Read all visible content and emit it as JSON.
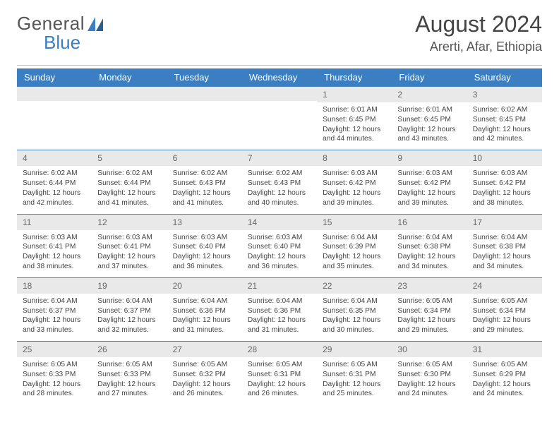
{
  "brand": {
    "word1": "General",
    "word2": "Blue"
  },
  "title": "August 2024",
  "location": "Arerti, Afar, Ethiopia",
  "colors": {
    "header_bg": "#3b7ec2",
    "daynum_bg": "#e9e9e9",
    "week_border": "#4a82ba",
    "text": "#444444"
  },
  "weekdays": [
    "Sunday",
    "Monday",
    "Tuesday",
    "Wednesday",
    "Thursday",
    "Friday",
    "Saturday"
  ],
  "weeks": [
    [
      {
        "empty": true
      },
      {
        "empty": true
      },
      {
        "empty": true
      },
      {
        "empty": true
      },
      {
        "num": "1",
        "sunrise": "Sunrise: 6:01 AM",
        "sunset": "Sunset: 6:45 PM",
        "daylight": "Daylight: 12 hours and 44 minutes."
      },
      {
        "num": "2",
        "sunrise": "Sunrise: 6:01 AM",
        "sunset": "Sunset: 6:45 PM",
        "daylight": "Daylight: 12 hours and 43 minutes."
      },
      {
        "num": "3",
        "sunrise": "Sunrise: 6:02 AM",
        "sunset": "Sunset: 6:45 PM",
        "daylight": "Daylight: 12 hours and 42 minutes."
      }
    ],
    [
      {
        "num": "4",
        "sunrise": "Sunrise: 6:02 AM",
        "sunset": "Sunset: 6:44 PM",
        "daylight": "Daylight: 12 hours and 42 minutes."
      },
      {
        "num": "5",
        "sunrise": "Sunrise: 6:02 AM",
        "sunset": "Sunset: 6:44 PM",
        "daylight": "Daylight: 12 hours and 41 minutes."
      },
      {
        "num": "6",
        "sunrise": "Sunrise: 6:02 AM",
        "sunset": "Sunset: 6:43 PM",
        "daylight": "Daylight: 12 hours and 41 minutes."
      },
      {
        "num": "7",
        "sunrise": "Sunrise: 6:02 AM",
        "sunset": "Sunset: 6:43 PM",
        "daylight": "Daylight: 12 hours and 40 minutes."
      },
      {
        "num": "8",
        "sunrise": "Sunrise: 6:03 AM",
        "sunset": "Sunset: 6:42 PM",
        "daylight": "Daylight: 12 hours and 39 minutes."
      },
      {
        "num": "9",
        "sunrise": "Sunrise: 6:03 AM",
        "sunset": "Sunset: 6:42 PM",
        "daylight": "Daylight: 12 hours and 39 minutes."
      },
      {
        "num": "10",
        "sunrise": "Sunrise: 6:03 AM",
        "sunset": "Sunset: 6:42 PM",
        "daylight": "Daylight: 12 hours and 38 minutes."
      }
    ],
    [
      {
        "num": "11",
        "sunrise": "Sunrise: 6:03 AM",
        "sunset": "Sunset: 6:41 PM",
        "daylight": "Daylight: 12 hours and 38 minutes."
      },
      {
        "num": "12",
        "sunrise": "Sunrise: 6:03 AM",
        "sunset": "Sunset: 6:41 PM",
        "daylight": "Daylight: 12 hours and 37 minutes."
      },
      {
        "num": "13",
        "sunrise": "Sunrise: 6:03 AM",
        "sunset": "Sunset: 6:40 PM",
        "daylight": "Daylight: 12 hours and 36 minutes."
      },
      {
        "num": "14",
        "sunrise": "Sunrise: 6:03 AM",
        "sunset": "Sunset: 6:40 PM",
        "daylight": "Daylight: 12 hours and 36 minutes."
      },
      {
        "num": "15",
        "sunrise": "Sunrise: 6:04 AM",
        "sunset": "Sunset: 6:39 PM",
        "daylight": "Daylight: 12 hours and 35 minutes."
      },
      {
        "num": "16",
        "sunrise": "Sunrise: 6:04 AM",
        "sunset": "Sunset: 6:38 PM",
        "daylight": "Daylight: 12 hours and 34 minutes."
      },
      {
        "num": "17",
        "sunrise": "Sunrise: 6:04 AM",
        "sunset": "Sunset: 6:38 PM",
        "daylight": "Daylight: 12 hours and 34 minutes."
      }
    ],
    [
      {
        "num": "18",
        "sunrise": "Sunrise: 6:04 AM",
        "sunset": "Sunset: 6:37 PM",
        "daylight": "Daylight: 12 hours and 33 minutes."
      },
      {
        "num": "19",
        "sunrise": "Sunrise: 6:04 AM",
        "sunset": "Sunset: 6:37 PM",
        "daylight": "Daylight: 12 hours and 32 minutes."
      },
      {
        "num": "20",
        "sunrise": "Sunrise: 6:04 AM",
        "sunset": "Sunset: 6:36 PM",
        "daylight": "Daylight: 12 hours and 31 minutes."
      },
      {
        "num": "21",
        "sunrise": "Sunrise: 6:04 AM",
        "sunset": "Sunset: 6:36 PM",
        "daylight": "Daylight: 12 hours and 31 minutes."
      },
      {
        "num": "22",
        "sunrise": "Sunrise: 6:04 AM",
        "sunset": "Sunset: 6:35 PM",
        "daylight": "Daylight: 12 hours and 30 minutes."
      },
      {
        "num": "23",
        "sunrise": "Sunrise: 6:05 AM",
        "sunset": "Sunset: 6:34 PM",
        "daylight": "Daylight: 12 hours and 29 minutes."
      },
      {
        "num": "24",
        "sunrise": "Sunrise: 6:05 AM",
        "sunset": "Sunset: 6:34 PM",
        "daylight": "Daylight: 12 hours and 29 minutes."
      }
    ],
    [
      {
        "num": "25",
        "sunrise": "Sunrise: 6:05 AM",
        "sunset": "Sunset: 6:33 PM",
        "daylight": "Daylight: 12 hours and 28 minutes."
      },
      {
        "num": "26",
        "sunrise": "Sunrise: 6:05 AM",
        "sunset": "Sunset: 6:33 PM",
        "daylight": "Daylight: 12 hours and 27 minutes."
      },
      {
        "num": "27",
        "sunrise": "Sunrise: 6:05 AM",
        "sunset": "Sunset: 6:32 PM",
        "daylight": "Daylight: 12 hours and 26 minutes."
      },
      {
        "num": "28",
        "sunrise": "Sunrise: 6:05 AM",
        "sunset": "Sunset: 6:31 PM",
        "daylight": "Daylight: 12 hours and 26 minutes."
      },
      {
        "num": "29",
        "sunrise": "Sunrise: 6:05 AM",
        "sunset": "Sunset: 6:31 PM",
        "daylight": "Daylight: 12 hours and 25 minutes."
      },
      {
        "num": "30",
        "sunrise": "Sunrise: 6:05 AM",
        "sunset": "Sunset: 6:30 PM",
        "daylight": "Daylight: 12 hours and 24 minutes."
      },
      {
        "num": "31",
        "sunrise": "Sunrise: 6:05 AM",
        "sunset": "Sunset: 6:29 PM",
        "daylight": "Daylight: 12 hours and 24 minutes."
      }
    ]
  ]
}
